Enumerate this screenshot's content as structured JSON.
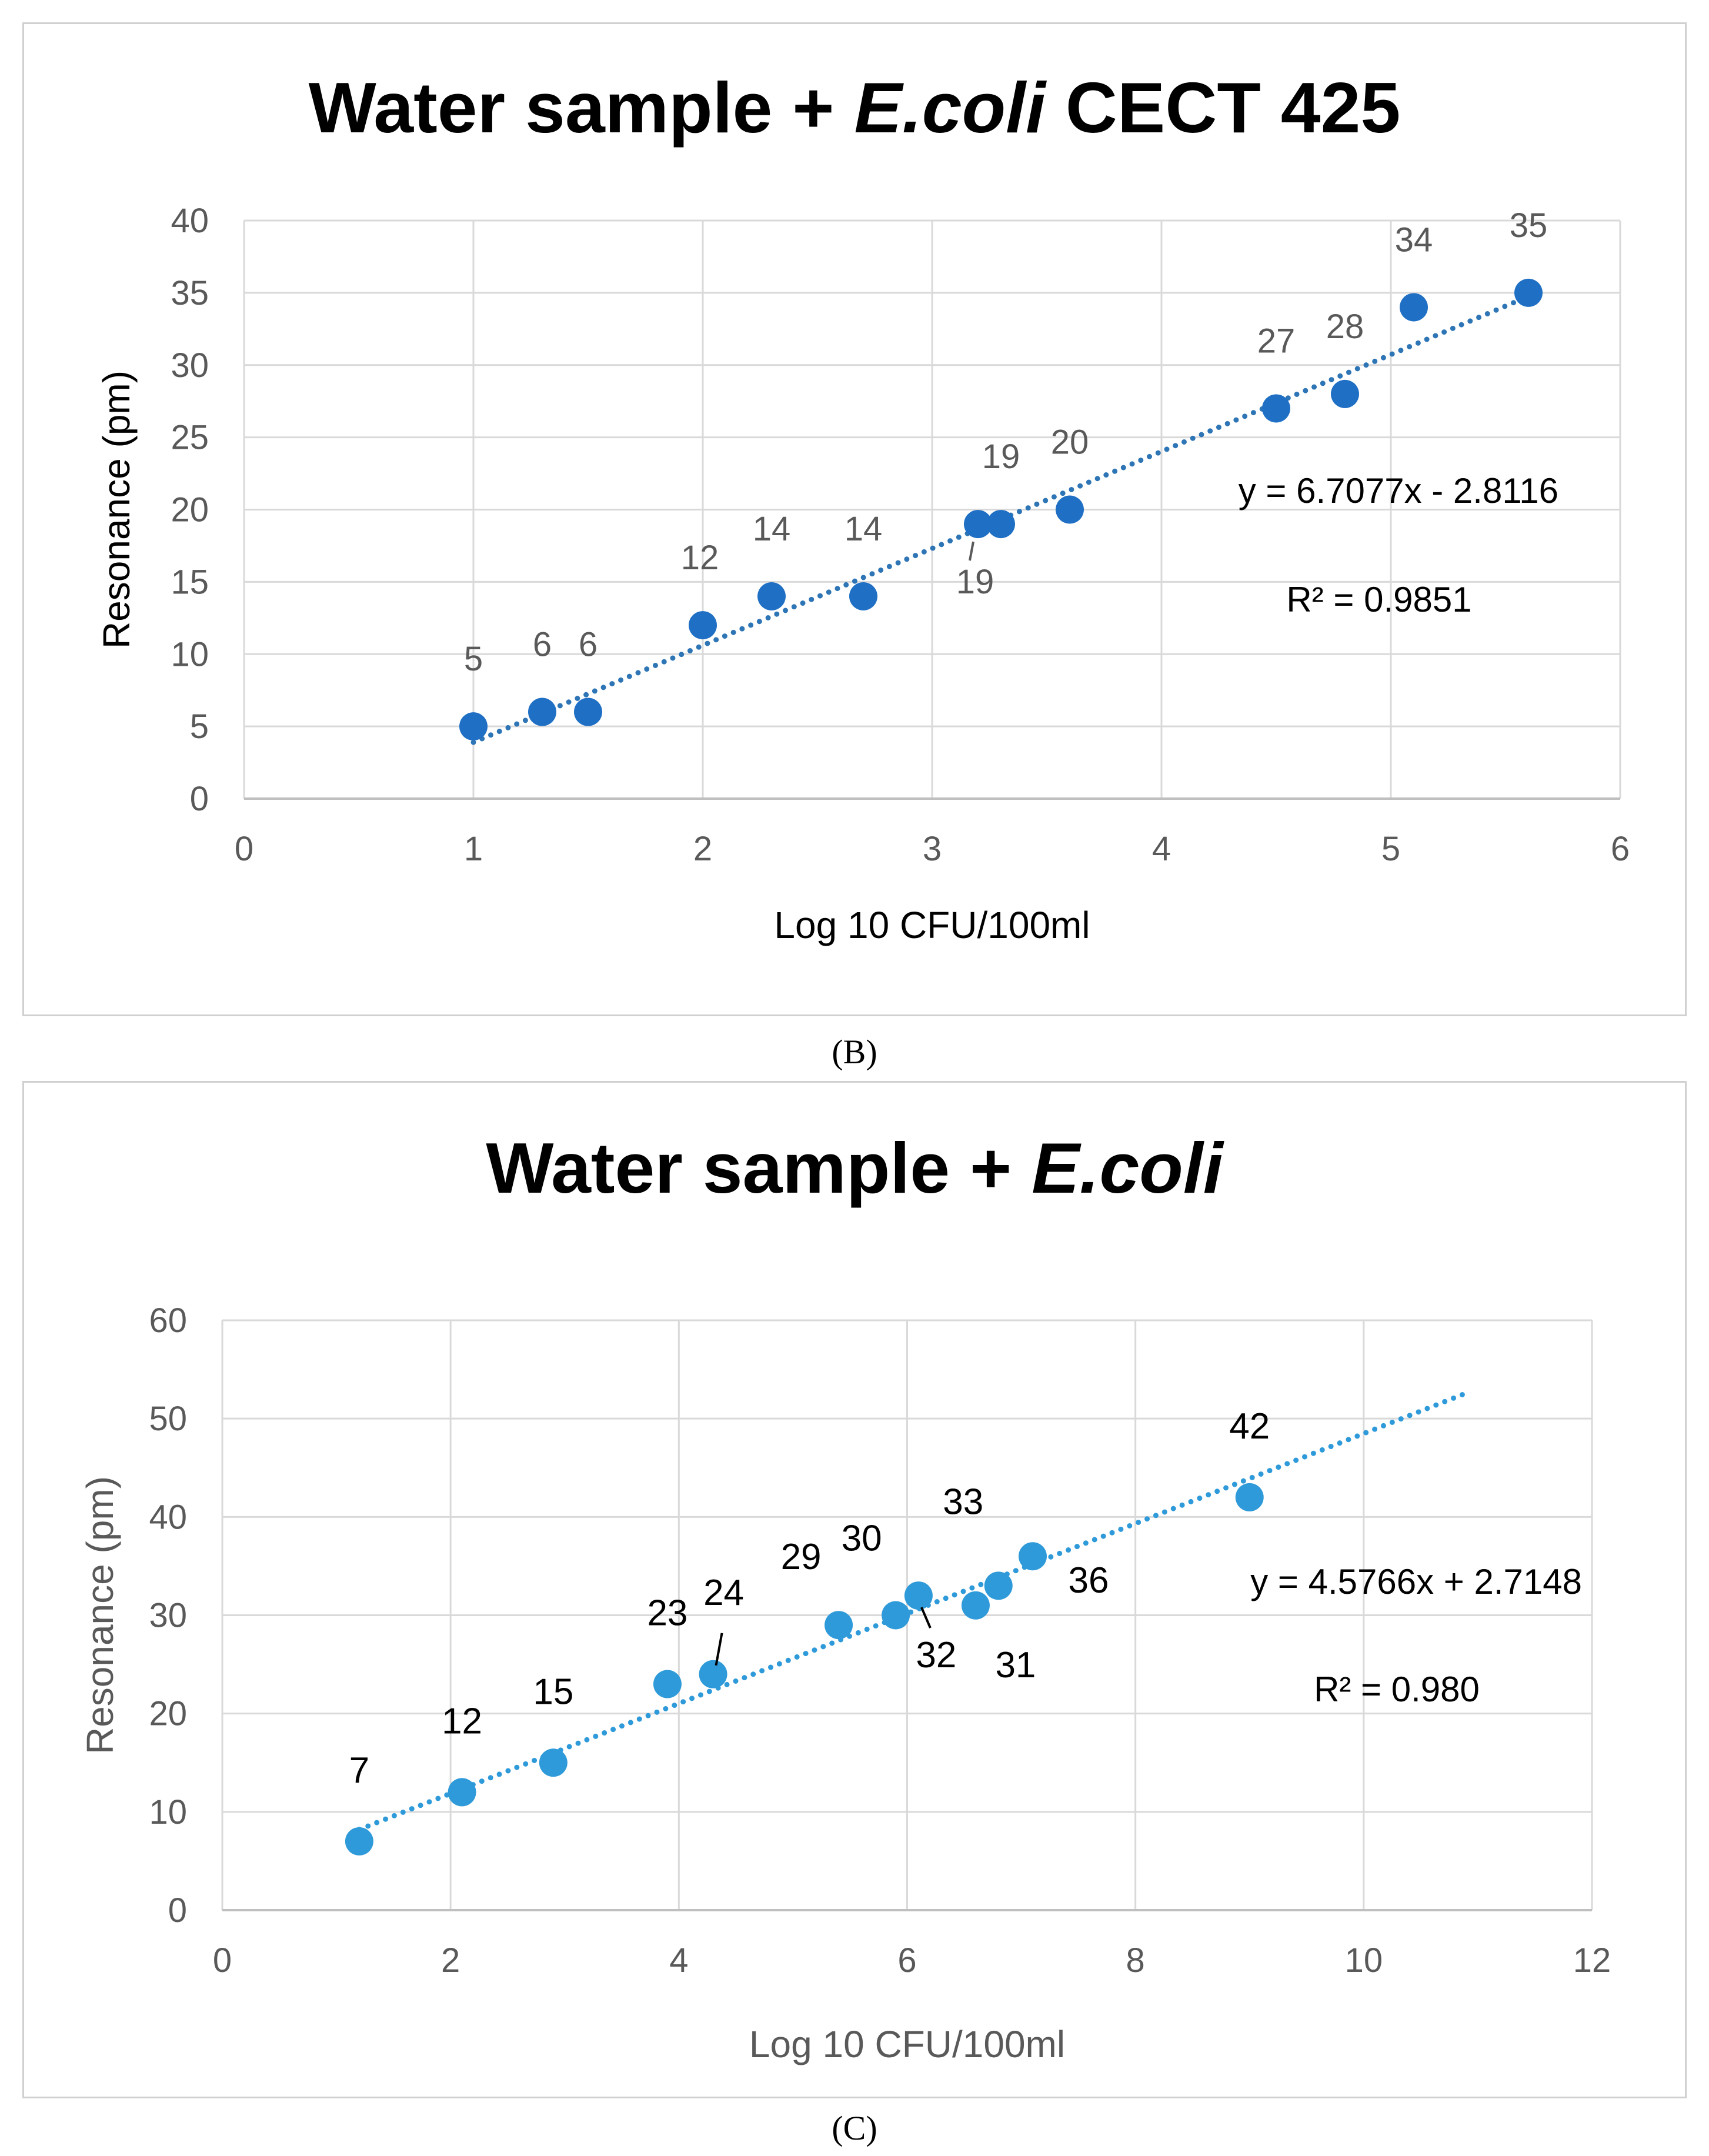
{
  "chart_data": [
    {
      "id": "B",
      "type": "scatter",
      "title": "Water sample + ",
      "title_italic": "E.coli",
      "title_suffix": " CECT 425",
      "xlabel": "Log 10 CFU/100ml",
      "ylabel": "Resonance (pm)",
      "xlim": [
        0,
        6
      ],
      "ylim": [
        0,
        40
      ],
      "xticks": [
        0,
        1,
        2,
        3,
        4,
        5,
        6
      ],
      "yticks": [
        0,
        5,
        10,
        15,
        20,
        25,
        30,
        35,
        40
      ],
      "grid": true,
      "marker_color": "#1f6fc5",
      "trend_color": "#2e75b6",
      "label_color": "#595959",
      "x": [
        1.0,
        1.3,
        1.5,
        2.0,
        2.3,
        2.7,
        3.2,
        3.3,
        3.6,
        4.5,
        4.8,
        5.1,
        5.6
      ],
      "y": [
        5,
        6,
        6,
        12,
        14,
        14,
        19,
        19,
        20,
        27,
        28,
        34,
        35
      ],
      "labels": [
        "5",
        "6",
        "6",
        "12",
        "14",
        "14",
        "19",
        "19",
        "20",
        "27",
        "28",
        "34",
        "35"
      ],
      "trendline": {
        "slope": 6.7077,
        "intercept": -2.8116,
        "x_range": [
          1.0,
          5.6
        ]
      },
      "equation": "y = 6.7077x - 2.8116",
      "r2": "R² = 0.9851",
      "caption": "(B)"
    },
    {
      "id": "C",
      "type": "scatter",
      "title": "Water sample + ",
      "title_italic": "E.coli",
      "title_suffix": "",
      "xlabel": "Log 10 CFU/100ml",
      "ylabel": "Resonance (pm)",
      "xlim": [
        0,
        12
      ],
      "ylim": [
        0,
        60
      ],
      "xticks": [
        0,
        2,
        4,
        6,
        8,
        10,
        12
      ],
      "yticks": [
        0,
        10,
        20,
        30,
        40,
        50,
        60
      ],
      "grid": true,
      "marker_color": "#2e9ad9",
      "trend_color": "#2e9ad9",
      "label_color": "#000000",
      "x": [
        1.2,
        2.1,
        2.9,
        3.9,
        4.3,
        5.4,
        5.9,
        6.1,
        6.6,
        6.8,
        7.1,
        9.0
      ],
      "y": [
        7,
        12,
        15,
        23,
        24,
        29,
        30,
        32,
        31,
        33,
        36,
        42
      ],
      "labels": [
        "7",
        "12",
        "15",
        "23",
        "24",
        "29",
        "30",
        "32",
        "31",
        "33",
        "36",
        "42"
      ],
      "trendline": {
        "slope": 4.5766,
        "intercept": 2.7148,
        "x_range": [
          1.2,
          10.9
        ]
      },
      "equation": "y = 4.5766x + 2.7148",
      "r2": "R² = 0.980",
      "caption": "(C)"
    }
  ]
}
